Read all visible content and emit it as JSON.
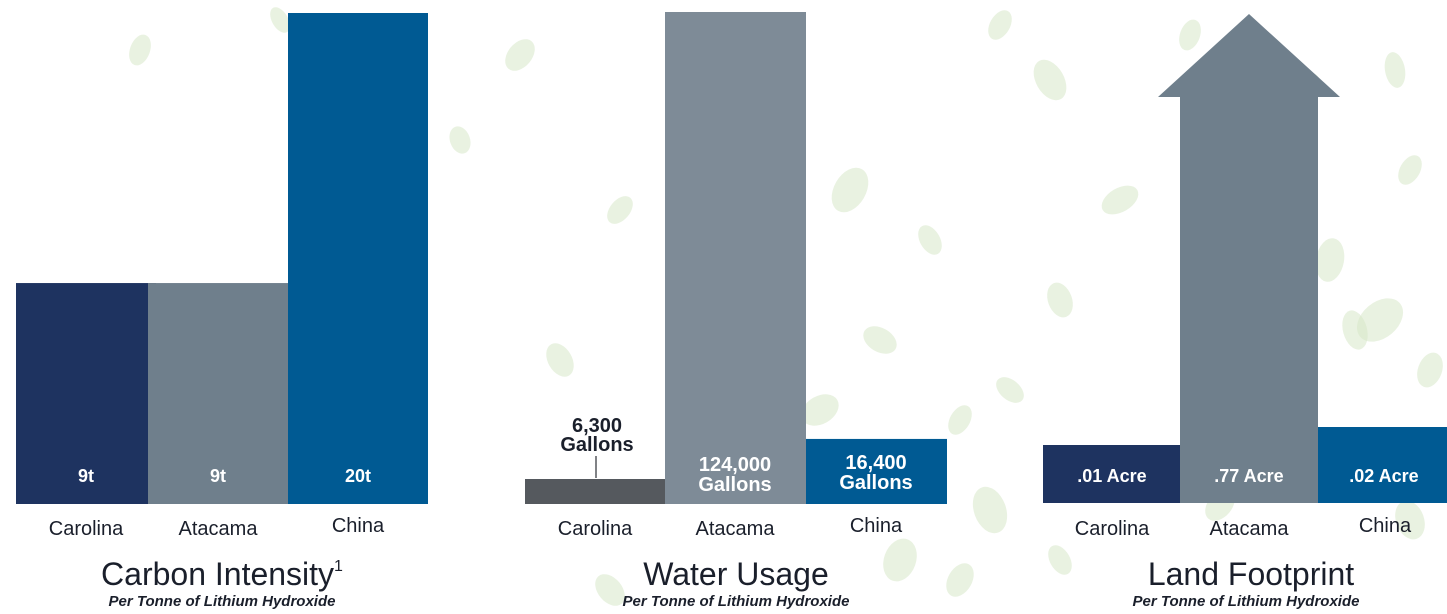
{
  "colors": {
    "carolina": "#1e3360",
    "atacama": "#6f7f8c",
    "atacama_water": "#7e8b97",
    "china": "#005a93",
    "carolina_water": "#55595e",
    "text_dark": "#1a1f2b",
    "leaf_tint": "#d7e7c8"
  },
  "chart_data": [
    {
      "type": "bar",
      "title": "Carbon Intensity",
      "title_superscript": "1",
      "subtitle": "Per Tonne of Lithium Hydroxide",
      "categories": [
        "Carolina",
        "Atacama",
        "China"
      ],
      "values": [
        9,
        9,
        20
      ],
      "value_labels": [
        "9t",
        "9t",
        "20t"
      ],
      "unit": "t",
      "ylim": [
        0,
        20
      ]
    },
    {
      "type": "bar",
      "title": "Water Usage",
      "subtitle": "Per Tonne of Lithium Hydroxide",
      "categories": [
        "Carolina",
        "Atacama",
        "China"
      ],
      "values": [
        6300,
        124000,
        16400
      ],
      "value_labels": [
        {
          "line1": "6,300",
          "line2": "Gallons"
        },
        {
          "line1": "124,000",
          "line2": "Gallons"
        },
        {
          "line1": "16,400",
          "line2": "Gallons"
        }
      ],
      "unit": "Gallons",
      "ylim": [
        0,
        124000
      ]
    },
    {
      "type": "bar",
      "title": "Land Footprint",
      "subtitle": "Per Tonne of Lithium Hydroxide",
      "categories": [
        "Carolina",
        "Atacama",
        "China"
      ],
      "values": [
        0.01,
        0.77,
        0.02
      ],
      "value_labels": [
        ".01 Acre",
        ".77 Acre",
        ".02 Acre"
      ],
      "unit": "Acre"
    }
  ]
}
